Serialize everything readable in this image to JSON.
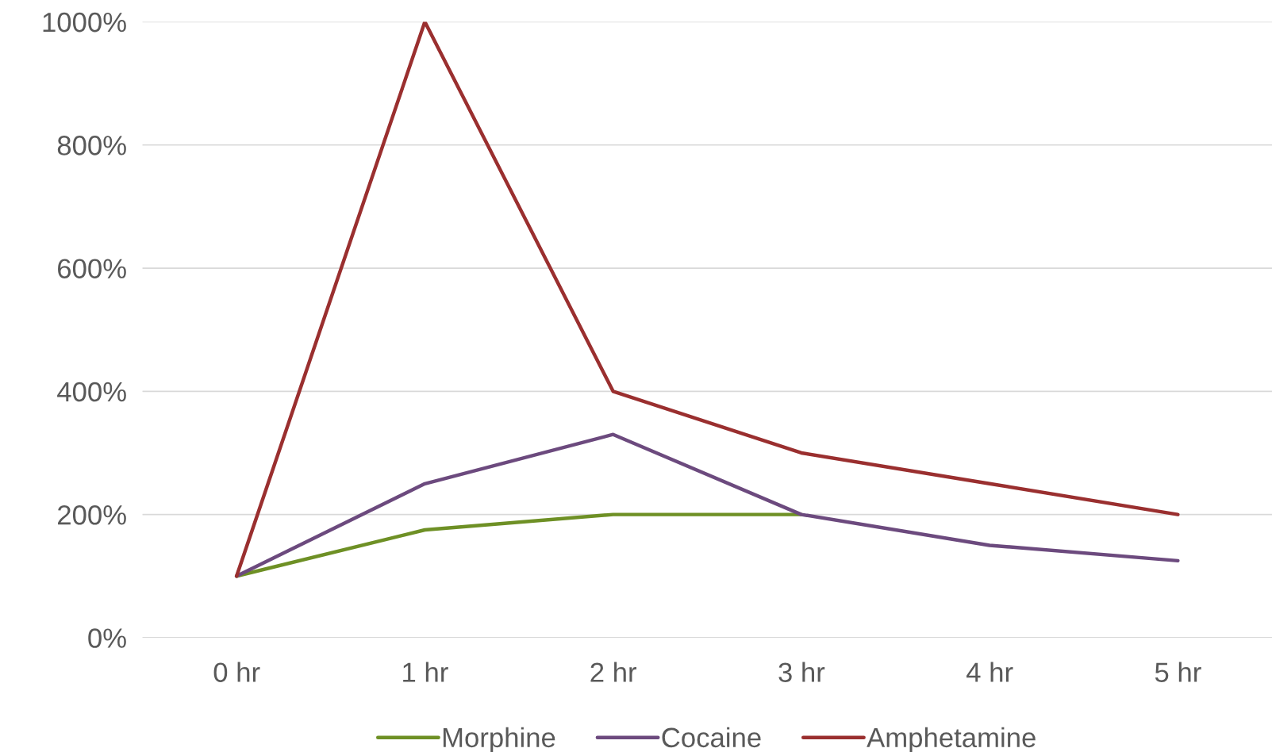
{
  "chart_data": {
    "type": "line",
    "categories": [
      "0 hr",
      "1 hr",
      "2 hr",
      "3 hr",
      "4 hr",
      "5 hr"
    ],
    "series": [
      {
        "name": "Morphine",
        "color": "#6e9025",
        "values": [
          100,
          175,
          200,
          200,
          null,
          null
        ]
      },
      {
        "name": "Cocaine",
        "color": "#6c4a7e",
        "values": [
          100,
          250,
          330,
          200,
          150,
          125
        ]
      },
      {
        "name": "Amphetamine",
        "color": "#9a2f2f",
        "values": [
          100,
          1000,
          400,
          300,
          250,
          200
        ]
      }
    ],
    "ylim": [
      0,
      1000
    ],
    "yticks": [
      {
        "value": 0,
        "label": "0%"
      },
      {
        "value": 200,
        "label": "200%"
      },
      {
        "value": 400,
        "label": "400%"
      },
      {
        "value": 600,
        "label": "600%"
      },
      {
        "value": 800,
        "label": "800%"
      },
      {
        "value": 1000,
        "label": "1000%"
      }
    ],
    "grid": "y",
    "legend": "bottom",
    "marker": "none",
    "line_style": "solid"
  }
}
